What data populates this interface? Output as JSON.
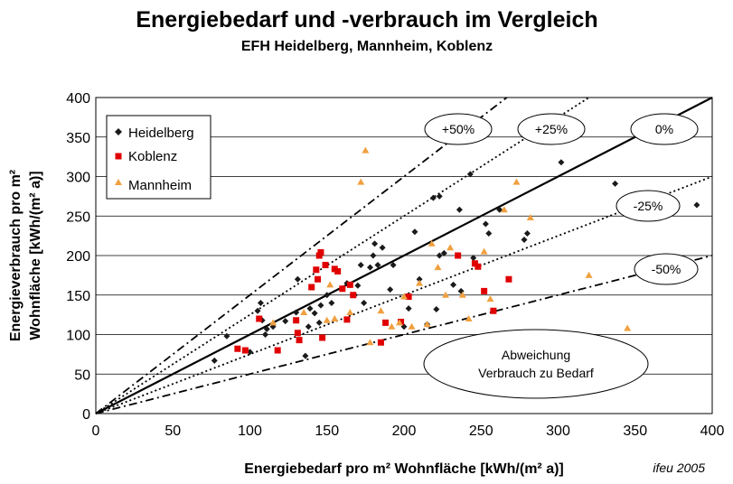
{
  "chart_data": {
    "type": "scatter",
    "title": "Energiebedarf und -verbrauch im Vergleich",
    "subtitle": "EFH Heidelberg, Mannheim, Koblenz",
    "xlabel": "Energiebedarf pro m² Wohnfläche [kWh/(m² a)]",
    "ylabel_line1": "Energieverbrauch pro m²",
    "ylabel_line2": "Wohnfläche [kWh/(m² a)]",
    "credit": "ifeu 2005",
    "xlim": [
      0,
      400
    ],
    "ylim": [
      0,
      400
    ],
    "xticks": [
      "0",
      "50",
      "100",
      "150",
      "200",
      "250",
      "300",
      "350",
      "400"
    ],
    "yticks": [
      "0",
      "50",
      "100",
      "150",
      "200",
      "250",
      "300",
      "350",
      "400"
    ],
    "grid": "horizontal",
    "legend_position": "top-left",
    "series": [
      {
        "name": "Heidelberg",
        "marker": "diamond",
        "color": "#1a1a1a",
        "points": [
          [
            77,
            67
          ],
          [
            85,
            98
          ],
          [
            100,
            78
          ],
          [
            105,
            130
          ],
          [
            107,
            140
          ],
          [
            108,
            118
          ],
          [
            110,
            100
          ],
          [
            111,
            107
          ],
          [
            115,
            110
          ],
          [
            123,
            117
          ],
          [
            130,
            128
          ],
          [
            131,
            170
          ],
          [
            136,
            73
          ],
          [
            138,
            110
          ],
          [
            139,
            133
          ],
          [
            142,
            127
          ],
          [
            145,
            115
          ],
          [
            146,
            137
          ],
          [
            150,
            150
          ],
          [
            153,
            140
          ],
          [
            155,
            183
          ],
          [
            160,
            158
          ],
          [
            163,
            165
          ],
          [
            168,
            150
          ],
          [
            170,
            162
          ],
          [
            172,
            188
          ],
          [
            174,
            140
          ],
          [
            178,
            185
          ],
          [
            180,
            200
          ],
          [
            181,
            215
          ],
          [
            183,
            188
          ],
          [
            186,
            210
          ],
          [
            191,
            157
          ],
          [
            193,
            188
          ],
          [
            200,
            110
          ],
          [
            203,
            133
          ],
          [
            207,
            230
          ],
          [
            210,
            170
          ],
          [
            215,
            113
          ],
          [
            219,
            273
          ],
          [
            221,
            132
          ],
          [
            223,
            275
          ],
          [
            223,
            200
          ],
          [
            226,
            203
          ],
          [
            232,
            163
          ],
          [
            236,
            258
          ],
          [
            237,
            155
          ],
          [
            243,
            303
          ],
          [
            245,
            197
          ],
          [
            253,
            240
          ],
          [
            255,
            228
          ],
          [
            262,
            258
          ],
          [
            278,
            220
          ],
          [
            280,
            228
          ],
          [
            302,
            318
          ],
          [
            337,
            291
          ],
          [
            390,
            264
          ]
        ]
      },
      {
        "name": "Koblenz",
        "marker": "square",
        "color": "#e00000",
        "points": [
          [
            92,
            82
          ],
          [
            97,
            80
          ],
          [
            106,
            120
          ],
          [
            118,
            80
          ],
          [
            130,
            118
          ],
          [
            131,
            102
          ],
          [
            132,
            93
          ],
          [
            140,
            160
          ],
          [
            143,
            182
          ],
          [
            144,
            170
          ],
          [
            145,
            200
          ],
          [
            146,
            204
          ],
          [
            147,
            96
          ],
          [
            149,
            188
          ],
          [
            155,
            183
          ],
          [
            157,
            180
          ],
          [
            160,
            158
          ],
          [
            163,
            119
          ],
          [
            165,
            163
          ],
          [
            167,
            150
          ],
          [
            185,
            90
          ],
          [
            188,
            115
          ],
          [
            198,
            116
          ],
          [
            203,
            148
          ],
          [
            235,
            200
          ],
          [
            246,
            190
          ],
          [
            248,
            186
          ],
          [
            252,
            155
          ],
          [
            258,
            130
          ],
          [
            268,
            170
          ]
        ]
      },
      {
        "name": "Mannheim",
        "marker": "triangle",
        "color": "#f0a040",
        "points": [
          [
            115,
            115
          ],
          [
            135,
            128
          ],
          [
            150,
            118
          ],
          [
            152,
            163
          ],
          [
            155,
            120
          ],
          [
            165,
            128
          ],
          [
            172,
            293
          ],
          [
            175,
            333
          ],
          [
            178,
            90
          ],
          [
            185,
            130
          ],
          [
            192,
            110
          ],
          [
            197,
            115
          ],
          [
            200,
            148
          ],
          [
            205,
            110
          ],
          [
            210,
            165
          ],
          [
            215,
            113
          ],
          [
            218,
            215
          ],
          [
            222,
            185
          ],
          [
            227,
            150
          ],
          [
            230,
            210
          ],
          [
            238,
            150
          ],
          [
            242,
            120
          ],
          [
            252,
            205
          ],
          [
            256,
            145
          ],
          [
            265,
            258
          ],
          [
            273,
            293
          ],
          [
            282,
            248
          ],
          [
            320,
            175
          ],
          [
            345,
            108
          ]
        ]
      }
    ],
    "reference_lines": [
      {
        "label": "+50%",
        "slope": 1.5,
        "style": "dashdot"
      },
      {
        "label": "+25%",
        "slope": 1.25,
        "style": "dotted"
      },
      {
        "label": "0%",
        "slope": 1.0,
        "style": "solid"
      },
      {
        "label": "-25%",
        "slope": 0.75,
        "style": "dotted"
      },
      {
        "label": "-50%",
        "slope": 0.5,
        "style": "dashdot"
      }
    ],
    "annotation_line1": "Abweichung",
    "annotation_line2": "Verbrauch zu Bedarf"
  }
}
